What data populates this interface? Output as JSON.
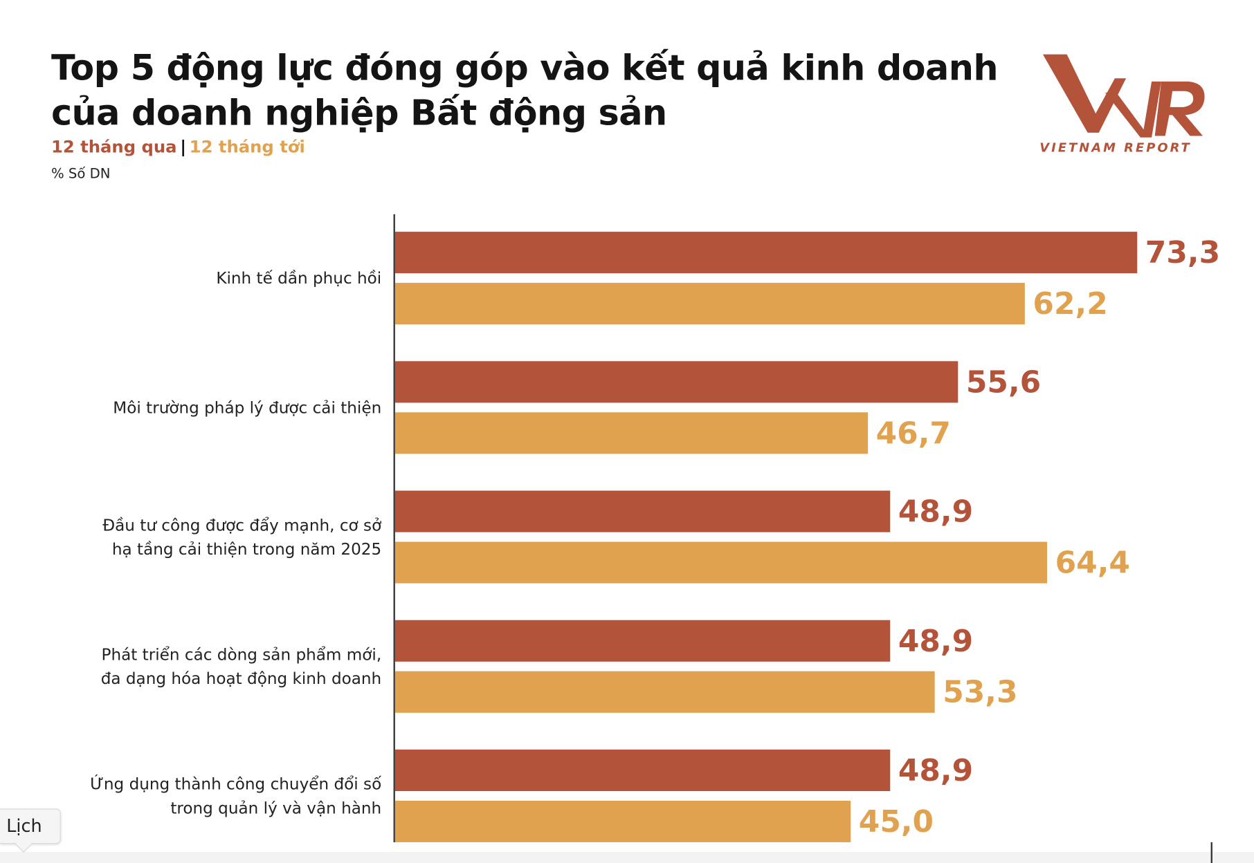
{
  "title_line1": "Top 5 động lực đóng góp vào kết quả kinh doanh",
  "title_line2": "của doanh nghiệp Bất động sản",
  "legend": {
    "series1": "12 tháng qua",
    "separator": "|",
    "series2": "12 tháng tới"
  },
  "unit_label": "% Số DN",
  "logo": {
    "mark": "VNR",
    "text": "VIETNAM REPORT"
  },
  "tooltip": "Lịch",
  "colors": {
    "series1": "#b3543a",
    "series2": "#e0a24f",
    "axis": "#333333"
  },
  "chart_data": {
    "type": "bar",
    "orientation": "horizontal",
    "title": "Top 5 động lực đóng góp vào kết quả kinh doanh của doanh nghiệp Bất động sản",
    "ylabel": "% Số DN",
    "xlim": [
      0,
      80
    ],
    "grid": false,
    "legend": "top-left",
    "categories": [
      [
        "Kinh tế dần phục hồi"
      ],
      [
        "Môi trường pháp lý được cải thiện"
      ],
      [
        "Đầu tư công được đẩy mạnh, cơ sở",
        "hạ tầng cải thiện trong năm 2025"
      ],
      [
        "Phát triển các dòng sản phẩm mới,",
        "đa dạng hóa hoạt động kinh doanh"
      ],
      [
        "Ứng dụng thành công chuyển đổi số",
        "trong quản lý và vận hành"
      ]
    ],
    "series": [
      {
        "name": "12 tháng qua",
        "values": [
          73.3,
          55.6,
          48.9,
          48.9,
          48.9
        ],
        "labels": [
          "73,3",
          "55,6",
          "48,9",
          "48,9",
          "48,9"
        ]
      },
      {
        "name": "12 tháng tới",
        "values": [
          62.2,
          46.7,
          64.4,
          53.3,
          45.0
        ],
        "labels": [
          "62,2",
          "46,7",
          "64,4",
          "53,3",
          "45,0"
        ]
      }
    ]
  }
}
